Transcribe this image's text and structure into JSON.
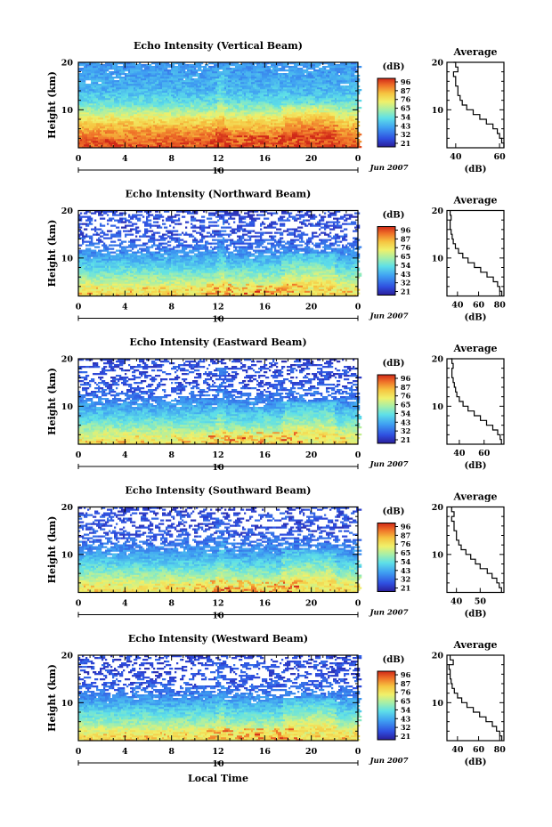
{
  "figure": {
    "x_axis_title": "Local Time",
    "date_label": "Jun 2007",
    "day_label": "10",
    "colorbar_unit": "(dB)",
    "colorbar_ticks": [
      "96",
      "87",
      "76",
      "65",
      "54",
      "43",
      "32",
      "21"
    ],
    "height_axis_label": "Height (km)",
    "avg_title": "Average",
    "avg_x_label": "(dB)"
  },
  "chart_data": [
    {
      "type": "heatmap",
      "title": "Echo Intensity (Vertical Beam)",
      "ylabel": "Height (km)",
      "x_ticks": [
        "0",
        "4",
        "8",
        "12",
        "16",
        "20",
        "0"
      ],
      "y_ticks": [
        "10",
        "20"
      ],
      "xlim": [
        0,
        24
      ],
      "ylim": [
        2,
        20
      ],
      "color_scale": [
        21,
        96
      ],
      "profile": [
        [
          2,
          91
        ],
        [
          4,
          88
        ],
        [
          6,
          82
        ],
        [
          8,
          74
        ],
        [
          10,
          61
        ],
        [
          12,
          52
        ],
        [
          14,
          46
        ],
        [
          16,
          44
        ],
        [
          18,
          42
        ],
        [
          20,
          40
        ]
      ],
      "avg_ticks": [
        "40",
        "60"
      ],
      "avg_xlim": [
        36,
        62
      ],
      "avg_profile": [
        [
          2,
          62
        ],
        [
          3,
          61
        ],
        [
          4,
          60
        ],
        [
          5,
          59
        ],
        [
          6,
          57
        ],
        [
          7,
          54
        ],
        [
          8,
          51
        ],
        [
          9,
          48
        ],
        [
          10,
          45
        ],
        [
          11,
          43
        ],
        [
          12,
          42
        ],
        [
          13,
          41
        ],
        [
          14,
          41
        ],
        [
          15,
          40
        ],
        [
          16,
          40
        ],
        [
          17,
          39
        ],
        [
          18,
          41
        ],
        [
          19,
          40
        ],
        [
          20,
          39
        ]
      ]
    },
    {
      "type": "heatmap",
      "title": "Echo Intensity (Northward Beam)",
      "ylabel": "Height (km)",
      "x_ticks": [
        "0",
        "4",
        "8",
        "12",
        "16",
        "20",
        "0"
      ],
      "y_ticks": [
        "10",
        "20"
      ],
      "xlim": [
        0,
        24
      ],
      "ylim": [
        2,
        20
      ],
      "color_scale": [
        21,
        96
      ],
      "profile": [
        [
          2,
          74
        ],
        [
          4,
          70
        ],
        [
          6,
          60
        ],
        [
          8,
          52
        ],
        [
          10,
          44
        ],
        [
          12,
          36
        ],
        [
          14,
          31
        ],
        [
          16,
          29
        ],
        [
          18,
          30
        ],
        [
          20,
          28
        ]
      ],
      "avg_ticks": [
        "40",
        "60",
        "80"
      ],
      "avg_xlim": [
        30,
        84
      ],
      "avg_profile": [
        [
          2,
          82
        ],
        [
          3,
          80
        ],
        [
          4,
          78
        ],
        [
          5,
          74
        ],
        [
          6,
          68
        ],
        [
          7,
          62
        ],
        [
          8,
          56
        ],
        [
          9,
          50
        ],
        [
          10,
          45
        ],
        [
          11,
          41
        ],
        [
          12,
          38
        ],
        [
          13,
          36
        ],
        [
          14,
          35
        ],
        [
          15,
          34
        ],
        [
          16,
          33
        ],
        [
          17,
          33
        ],
        [
          18,
          34
        ],
        [
          19,
          33
        ],
        [
          20,
          33
        ]
      ]
    },
    {
      "type": "heatmap",
      "title": "Echo Intensity (Eastward Beam)",
      "ylabel": "Height (km)",
      "x_ticks": [
        "0",
        "4",
        "8",
        "12",
        "16",
        "20",
        "0"
      ],
      "y_ticks": [
        "10",
        "20"
      ],
      "xlim": [
        0,
        24
      ],
      "ylim": [
        2,
        20
      ],
      "color_scale": [
        21,
        96
      ],
      "profile": [
        [
          2,
          72
        ],
        [
          4,
          68
        ],
        [
          6,
          58
        ],
        [
          8,
          50
        ],
        [
          10,
          43
        ],
        [
          12,
          35
        ],
        [
          14,
          31
        ],
        [
          16,
          29
        ],
        [
          18,
          30
        ],
        [
          20,
          28
        ]
      ],
      "avg_ticks": [
        "40",
        "60"
      ],
      "avg_xlim": [
        30,
        76
      ],
      "avg_profile": [
        [
          2,
          74
        ],
        [
          3,
          73
        ],
        [
          4,
          71
        ],
        [
          5,
          67
        ],
        [
          6,
          62
        ],
        [
          7,
          57
        ],
        [
          8,
          52
        ],
        [
          9,
          47
        ],
        [
          10,
          43
        ],
        [
          11,
          40
        ],
        [
          12,
          38
        ],
        [
          13,
          37
        ],
        [
          14,
          36
        ],
        [
          15,
          35
        ],
        [
          16,
          34
        ],
        [
          17,
          34
        ],
        [
          18,
          35
        ],
        [
          19,
          34
        ],
        [
          20,
          33
        ]
      ]
    },
    {
      "type": "heatmap",
      "title": "Echo Intensity (Southward Beam)",
      "ylabel": "Height (km)",
      "x_ticks": [
        "0",
        "4",
        "8",
        "12",
        "16",
        "20",
        "0"
      ],
      "y_ticks": [
        "10",
        "20"
      ],
      "xlim": [
        0,
        24
      ],
      "ylim": [
        2,
        20
      ],
      "color_scale": [
        21,
        96
      ],
      "profile": [
        [
          2,
          73
        ],
        [
          4,
          69
        ],
        [
          6,
          59
        ],
        [
          8,
          51
        ],
        [
          10,
          43
        ],
        [
          12,
          36
        ],
        [
          14,
          31
        ],
        [
          16,
          29
        ],
        [
          18,
          30
        ],
        [
          20,
          28
        ]
      ],
      "avg_ticks": [
        "40",
        "50"
      ],
      "avg_xlim": [
        36,
        60
      ],
      "avg_profile": [
        [
          2,
          59
        ],
        [
          3,
          58
        ],
        [
          4,
          57
        ],
        [
          5,
          55
        ],
        [
          6,
          53
        ],
        [
          7,
          50
        ],
        [
          8,
          48
        ],
        [
          9,
          46
        ],
        [
          10,
          44
        ],
        [
          11,
          42
        ],
        [
          12,
          41
        ],
        [
          13,
          40
        ],
        [
          14,
          40
        ],
        [
          15,
          39
        ],
        [
          16,
          39
        ],
        [
          17,
          38
        ],
        [
          18,
          39
        ],
        [
          19,
          38
        ],
        [
          20,
          38
        ]
      ]
    },
    {
      "type": "heatmap",
      "title": "Echo Intensity (Westward Beam)",
      "ylabel": "Height (km)",
      "x_ticks": [
        "0",
        "4",
        "8",
        "12",
        "16",
        "20",
        "0"
      ],
      "y_ticks": [
        "10",
        "20"
      ],
      "xlim": [
        0,
        24
      ],
      "ylim": [
        2,
        20
      ],
      "color_scale": [
        21,
        96
      ],
      "profile": [
        [
          2,
          75
        ],
        [
          4,
          70
        ],
        [
          6,
          60
        ],
        [
          8,
          52
        ],
        [
          10,
          44
        ],
        [
          12,
          36
        ],
        [
          14,
          31
        ],
        [
          16,
          29
        ],
        [
          18,
          30
        ],
        [
          20,
          28
        ]
      ],
      "avg_ticks": [
        "40",
        "60",
        "80"
      ],
      "avg_xlim": [
        30,
        84
      ],
      "avg_profile": [
        [
          2,
          82
        ],
        [
          3,
          80
        ],
        [
          4,
          77
        ],
        [
          5,
          73
        ],
        [
          6,
          67
        ],
        [
          7,
          61
        ],
        [
          8,
          55
        ],
        [
          9,
          49
        ],
        [
          10,
          44
        ],
        [
          11,
          40
        ],
        [
          12,
          37
        ],
        [
          13,
          35
        ],
        [
          14,
          34
        ],
        [
          15,
          33
        ],
        [
          16,
          33
        ],
        [
          17,
          32
        ],
        [
          18,
          36
        ],
        [
          19,
          33
        ],
        [
          20,
          33
        ]
      ]
    }
  ]
}
